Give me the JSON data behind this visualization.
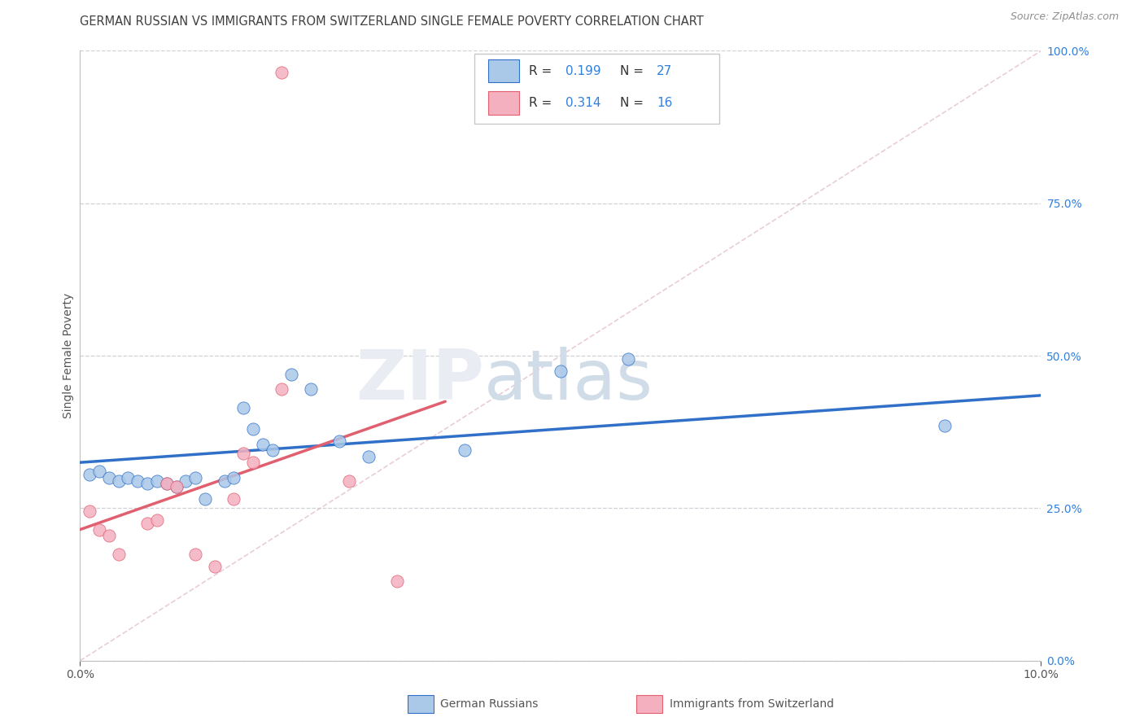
{
  "title": "GERMAN RUSSIAN VS IMMIGRANTS FROM SWITZERLAND SINGLE FEMALE POVERTY CORRELATION CHART",
  "source": "Source: ZipAtlas.com",
  "ylabel": "Single Female Poverty",
  "right_ytick_labels": [
    "0.0%",
    "25.0%",
    "50.0%",
    "75.0%",
    "100.0%"
  ],
  "right_ytick_vals": [
    0.0,
    0.25,
    0.5,
    0.75,
    1.0
  ],
  "xmin": 0.0,
  "xmax": 0.1,
  "ymin": 0.0,
  "ymax": 1.0,
  "legend_label1": "German Russians",
  "legend_label2": "Immigrants from Switzerland",
  "blue_color": "#aac8e8",
  "pink_color": "#f5b0c0",
  "line_blue": "#3070c8",
  "line_pink": "#e06070",
  "line_diag_color": "#e0b8c8",
  "R_text_color": "#3080e0",
  "title_color": "#404040",
  "source_color": "#909090",
  "blue_x": [
    0.001,
    0.002,
    0.003,
    0.004,
    0.005,
    0.006,
    0.007,
    0.008,
    0.009,
    0.01,
    0.011,
    0.012,
    0.013,
    0.015,
    0.016,
    0.017,
    0.018,
    0.019,
    0.02,
    0.022,
    0.024,
    0.027,
    0.03,
    0.04,
    0.05,
    0.057,
    0.09
  ],
  "blue_y": [
    0.305,
    0.31,
    0.3,
    0.295,
    0.3,
    0.295,
    0.29,
    0.295,
    0.29,
    0.285,
    0.295,
    0.3,
    0.265,
    0.295,
    0.3,
    0.415,
    0.38,
    0.355,
    0.345,
    0.47,
    0.445,
    0.36,
    0.335,
    0.345,
    0.475,
    0.495,
    0.385
  ],
  "pink_x": [
    0.001,
    0.002,
    0.003,
    0.004,
    0.007,
    0.008,
    0.009,
    0.01,
    0.012,
    0.014,
    0.016,
    0.017,
    0.018,
    0.021,
    0.028,
    0.033
  ],
  "pink_y": [
    0.245,
    0.215,
    0.205,
    0.175,
    0.225,
    0.23,
    0.29,
    0.285,
    0.175,
    0.155,
    0.265,
    0.34,
    0.325,
    0.445,
    0.295,
    0.13
  ],
  "pink_outlier_x": [
    0.021
  ],
  "pink_outlier_y": [
    0.965
  ],
  "blue_trend_x": [
    0.0,
    0.1
  ],
  "blue_trend_y": [
    0.325,
    0.435
  ],
  "pink_trend_x": [
    0.0,
    0.038
  ],
  "pink_trend_y": [
    0.215,
    0.425
  ],
  "marker_size": 120
}
